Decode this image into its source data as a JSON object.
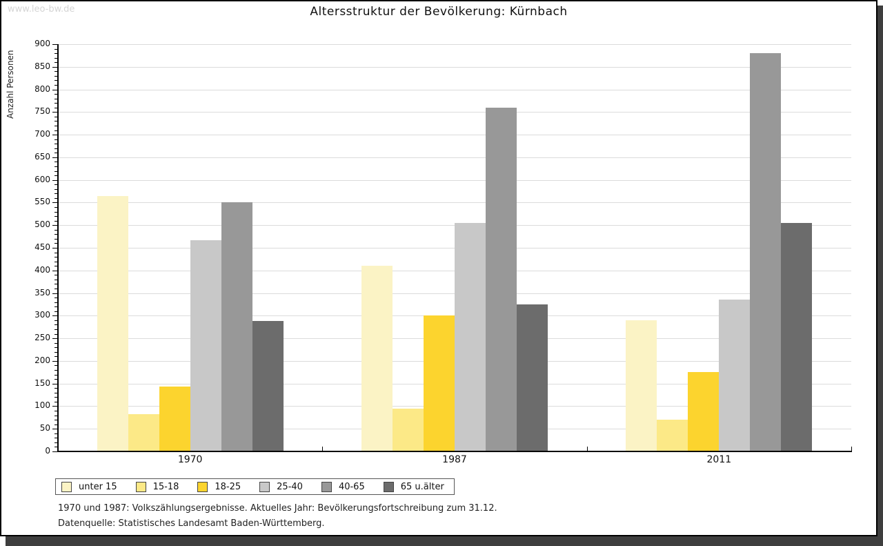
{
  "watermark": "www.leo-bw.de",
  "title": "Altersstruktur der Bevölkerung: Kürnbach",
  "chart_data": {
    "type": "bar",
    "title": "Altersstruktur der Bevölkerung: Kürnbach",
    "xlabel": "",
    "ylabel": "Anzahl Personen",
    "ylim": [
      0,
      900
    ],
    "ytick_major_step": 50,
    "ytick_minor_step": 10,
    "grid": true,
    "legend_position": "bottom",
    "categories": [
      "1970",
      "1987",
      "2011"
    ],
    "series": [
      {
        "name": "unter 15",
        "color": "#fbf3c5",
        "values": [
          565,
          410,
          290
        ]
      },
      {
        "name": "15-18",
        "color": "#fce987",
        "values": [
          83,
          95,
          70
        ]
      },
      {
        "name": "18-25",
        "color": "#fcd42e",
        "values": [
          143,
          300,
          175
        ]
      },
      {
        "name": "25-40",
        "color": "#c8c8c8",
        "values": [
          467,
          505,
          335
        ]
      },
      {
        "name": "40-65",
        "color": "#989898",
        "values": [
          550,
          760,
          880
        ]
      },
      {
        "name": "65 u.älter",
        "color": "#6c6c6c",
        "values": [
          288,
          325,
          505
        ]
      }
    ]
  },
  "footnotes": [
    "1970 und 1987: Volkszählungsergebnisse. Aktuelles Jahr: Bevölkerungsfortschreibung zum 31.12.",
    "Datenquelle: Statistisches Landesamt Baden-Württemberg."
  ],
  "colors": {
    "gridline": "#dbdbdb",
    "axis": "#000000",
    "shadow": "#3e3e3e",
    "watermark": "#d5d5d5"
  }
}
